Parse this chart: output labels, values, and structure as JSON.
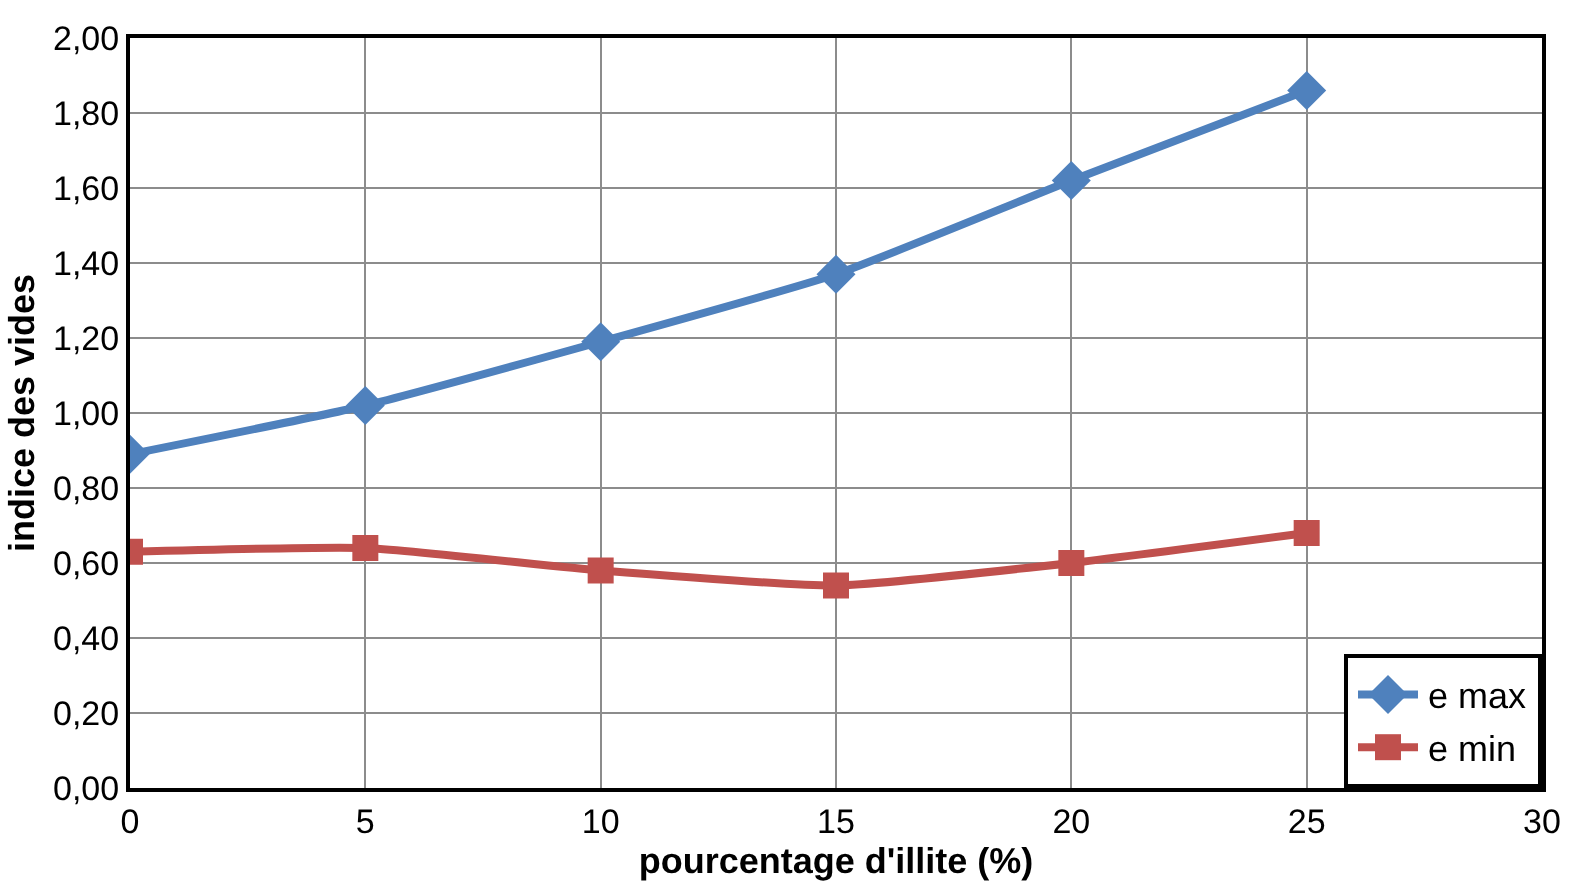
{
  "chart_data": {
    "type": "line",
    "xlabel": "pourcentage d'illite (%)",
    "ylabel": "indice des vides",
    "x": [
      0,
      5,
      10,
      15,
      20,
      25
    ],
    "series": [
      {
        "name": "e max",
        "color": "#4f81bd",
        "marker": "diamond",
        "values": [
          0.89,
          1.02,
          1.19,
          1.37,
          1.62,
          1.86
        ]
      },
      {
        "name": "e min",
        "color": "#c0504d",
        "marker": "square",
        "values": [
          0.63,
          0.64,
          0.58,
          0.54,
          0.6,
          0.68
        ]
      }
    ],
    "xlim": [
      0,
      30
    ],
    "xticks": [
      0,
      5,
      10,
      15,
      20,
      25,
      30
    ],
    "ylim": [
      0,
      2
    ],
    "yticks": [
      {
        "value": 0,
        "label": "0,00"
      },
      {
        "value": 0.2,
        "label": "0,20"
      },
      {
        "value": 0.4,
        "label": "0,40"
      },
      {
        "value": 0.6,
        "label": "0,60"
      },
      {
        "value": 0.8,
        "label": "0,80"
      },
      {
        "value": 1.0,
        "label": "1,00"
      },
      {
        "value": 1.2,
        "label": "1,20"
      },
      {
        "value": 1.4,
        "label": "1,40"
      },
      {
        "value": 1.6,
        "label": "1,60"
      },
      {
        "value": 1.8,
        "label": "1,80"
      },
      {
        "value": 2.0,
        "label": "2,00"
      }
    ],
    "grid": true,
    "legend": "bottom right",
    "line_style": "solid"
  }
}
